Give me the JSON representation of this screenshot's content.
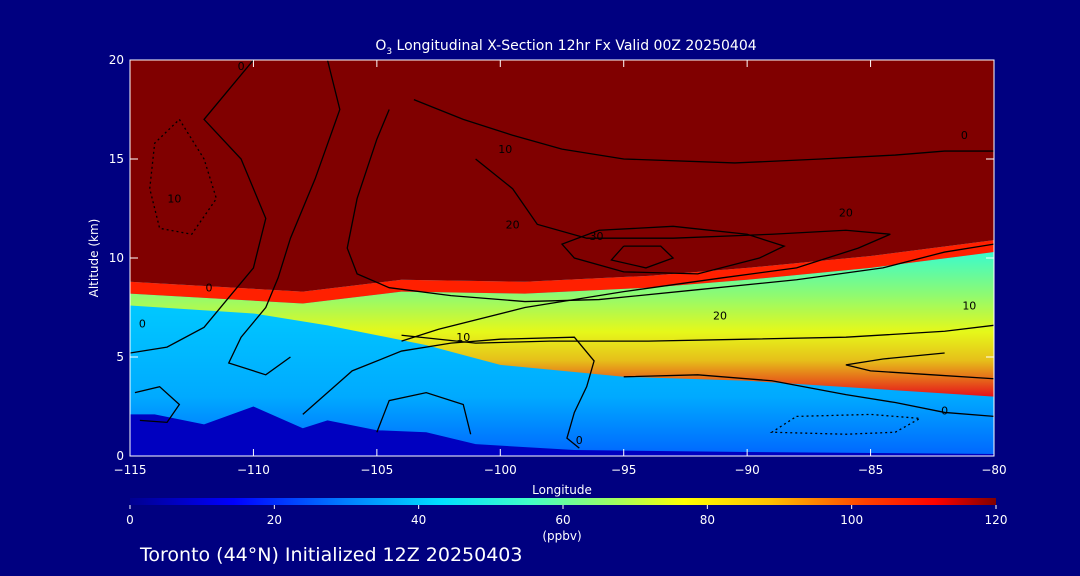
{
  "colors": {
    "background": "#000080",
    "text": "#ffffff",
    "contour": "#000000",
    "colormap": [
      "#0000ff",
      "#0055ff",
      "#00aaff",
      "#00e5ff",
      "#40ffc8",
      "#a0ff60",
      "#ffff00",
      "#ffc000",
      "#ff6000",
      "#ff0000",
      "#800000"
    ]
  },
  "chart_data": {
    "type": "heatmap",
    "title": "O3 Longitudinal X-Section 12hr  Fx Valid 00Z 20250404",
    "title_main": "O",
    "title_sub": "3",
    "title_rest": " Longitudinal X-Section 12hr  Fx Valid 00Z 20250404",
    "xlabel": "Longitude",
    "ylabel": "Altitude (km)",
    "xlim": [
      -115,
      -80
    ],
    "ylim": [
      0,
      20
    ],
    "xticks": [
      -115,
      -110,
      -105,
      -100,
      -95,
      -90,
      -85,
      -80
    ],
    "xtick_labels": [
      "−115",
      "−110",
      "−105",
      "−100",
      "−95",
      "−90",
      "−85",
      "−80"
    ],
    "yticks": [
      0,
      5,
      10,
      15,
      20
    ],
    "ytick_labels": [
      "0",
      "5",
      "10",
      "15",
      "20"
    ],
    "colorbar": {
      "label": "(ppbv)",
      "range": [
        0,
        120
      ],
      "ticks": [
        0,
        20,
        40,
        60,
        80,
        100,
        120
      ],
      "tick_labels": [
        "0",
        "20",
        "40",
        "60",
        "80",
        "100",
        "120"
      ]
    },
    "tropopause_height_km": [
      {
        "lon": -115,
        "alt": 8.8
      },
      {
        "lon": -108,
        "alt": 8.3
      },
      {
        "lon": -104,
        "alt": 8.9
      },
      {
        "lon": -99,
        "alt": 8.8
      },
      {
        "lon": -94,
        "alt": 9.1
      },
      {
        "lon": -90,
        "alt": 9.5
      },
      {
        "lon": -85,
        "alt": 10.1
      },
      {
        "lon": -80,
        "alt": 10.9
      }
    ],
    "terrain_km": [
      {
        "lon": -115,
        "alt": 2.1
      },
      {
        "lon": -114,
        "alt": 2.1
      },
      {
        "lon": -112,
        "alt": 1.6
      },
      {
        "lon": -110,
        "alt": 2.5
      },
      {
        "lon": -108,
        "alt": 1.4
      },
      {
        "lon": -107,
        "alt": 1.8
      },
      {
        "lon": -105,
        "alt": 1.3
      },
      {
        "lon": -103,
        "alt": 1.2
      },
      {
        "lon": -101,
        "alt": 0.6
      },
      {
        "lon": -97,
        "alt": 0.3
      },
      {
        "lon": -90,
        "alt": 0.2
      },
      {
        "lon": -80,
        "alt": 0.1
      }
    ],
    "contour_labels": [
      {
        "text": "0",
        "lon": -114.5,
        "alt": 6.5
      },
      {
        "text": "0",
        "lon": -111.8,
        "alt": 8.3
      },
      {
        "text": "10",
        "lon": -113.2,
        "alt": 12.8
      },
      {
        "text": "0",
        "lon": -110.5,
        "alt": 19.5
      },
      {
        "text": "10",
        "lon": -101.5,
        "alt": 5.8
      },
      {
        "text": "20",
        "lon": -99.5,
        "alt": 11.5
      },
      {
        "text": "10",
        "lon": -99.8,
        "alt": 15.3
      },
      {
        "text": "30",
        "lon": -96.1,
        "alt": 10.9
      },
      {
        "text": "20",
        "lon": -91.1,
        "alt": 6.9
      },
      {
        "text": "20",
        "lon": -86.0,
        "alt": 12.1
      },
      {
        "text": "10",
        "lon": -81.0,
        "alt": 7.4
      },
      {
        "text": "0",
        "lon": -82.0,
        "alt": 2.1
      },
      {
        "text": "0",
        "lon": -81.2,
        "alt": 16.0
      },
      {
        "text": "0",
        "lon": -96.8,
        "alt": 0.6
      }
    ],
    "footer": "Toronto (44°N) Initialized 12Z 20250403"
  }
}
